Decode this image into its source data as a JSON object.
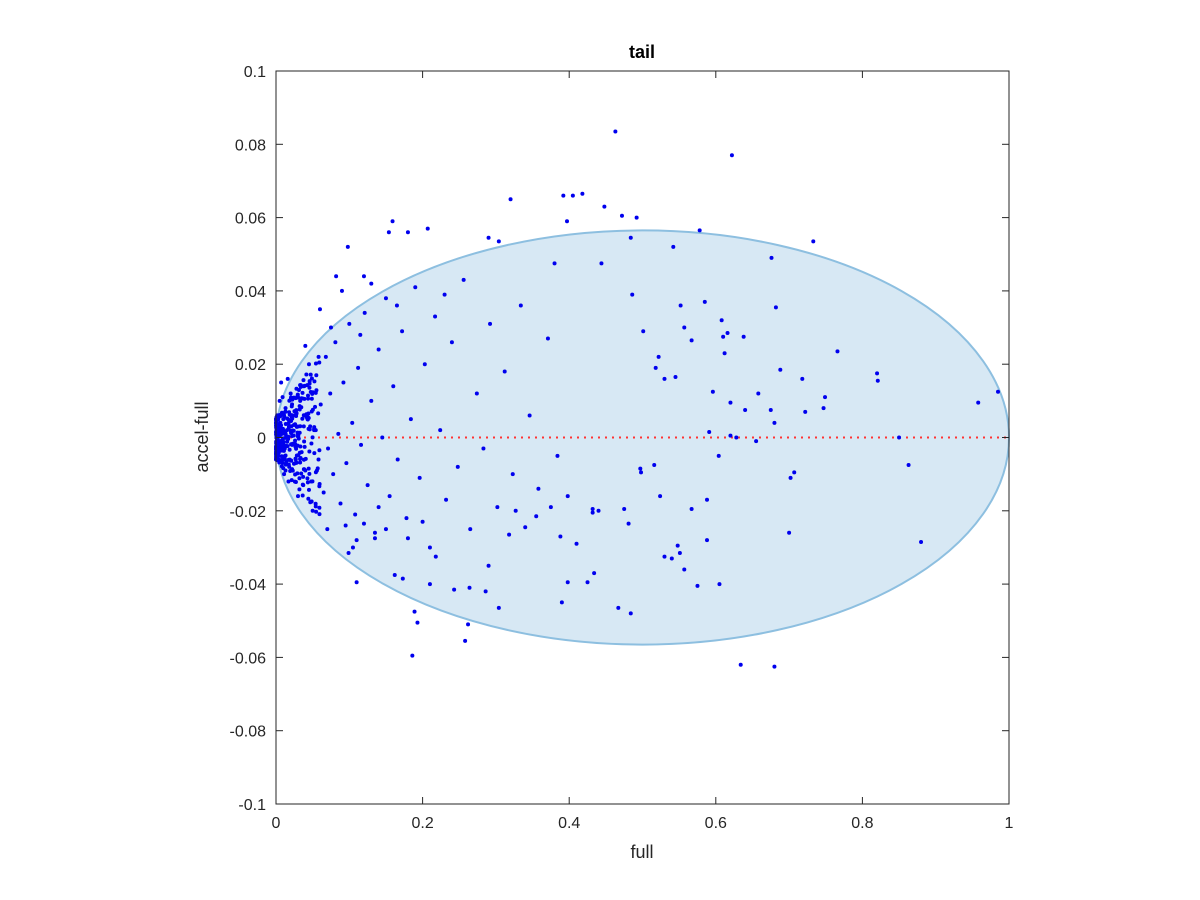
{
  "chart_data": {
    "type": "scatter",
    "title": "tail",
    "xlabel": "full",
    "ylabel": "accel-full",
    "xlim": [
      0,
      1
    ],
    "ylim": [
      -0.1,
      0.1
    ],
    "xticks": [
      0,
      0.2,
      0.4,
      0.6,
      0.8,
      1
    ],
    "xtick_labels": [
      "0",
      "0.2",
      "0.4",
      "0.6",
      "0.8",
      "1"
    ],
    "yticks": [
      -0.1,
      -0.08,
      -0.06,
      -0.04,
      -0.02,
      0,
      0.02,
      0.04,
      0.06,
      0.08,
      0.1
    ],
    "ytick_labels": [
      "-0.1",
      "-0.08",
      "-0.06",
      "-0.04",
      "-0.02",
      "0",
      "0.02",
      "0.04",
      "0.06",
      "0.08",
      "0.1"
    ],
    "grid": false,
    "legend": "none",
    "colors": {
      "points": "#0000ee",
      "region_fill": "#d7e8f4",
      "region_edge": "#8dbfe0",
      "zero_line": "#ff3333"
    },
    "reference_line": {
      "y": 0,
      "style": "dotted"
    },
    "region": {
      "shape": "ellipse",
      "x_min": 0,
      "x_max": 1,
      "center_y": 0,
      "y_extent": 0.0565
    },
    "points": [
      [
        0.463,
        0.0835
      ],
      [
        0.622,
        0.077
      ],
      [
        0.32,
        0.065
      ],
      [
        0.392,
        0.066
      ],
      [
        0.405,
        0.066
      ],
      [
        0.418,
        0.0665
      ],
      [
        0.448,
        0.063
      ],
      [
        0.472,
        0.0605
      ],
      [
        0.492,
        0.06
      ],
      [
        0.397,
        0.059
      ],
      [
        0.159,
        0.059
      ],
      [
        0.578,
        0.0565
      ],
      [
        0.484,
        0.0545
      ],
      [
        0.154,
        0.056
      ],
      [
        0.18,
        0.056
      ],
      [
        0.207,
        0.057
      ],
      [
        0.733,
        0.0535
      ],
      [
        0.676,
        0.049
      ],
      [
        0.098,
        0.052
      ],
      [
        0.542,
        0.052
      ],
      [
        0.304,
        0.0535
      ],
      [
        0.29,
        0.0545
      ],
      [
        0.12,
        0.044
      ],
      [
        0.082,
        0.044
      ],
      [
        0.444,
        0.0475
      ],
      [
        0.38,
        0.0475
      ],
      [
        0.486,
        0.039
      ],
      [
        0.552,
        0.036
      ],
      [
        0.585,
        0.037
      ],
      [
        0.682,
        0.0355
      ],
      [
        0.608,
        0.032
      ],
      [
        0.616,
        0.0285
      ],
      [
        0.61,
        0.0275
      ],
      [
        0.501,
        0.029
      ],
      [
        0.557,
        0.03
      ],
      [
        0.638,
        0.0275
      ],
      [
        0.567,
        0.0265
      ],
      [
        0.612,
        0.023
      ],
      [
        0.766,
        0.0235
      ],
      [
        0.522,
        0.022
      ],
      [
        0.518,
        0.019
      ],
      [
        0.688,
        0.0185
      ],
      [
        0.53,
        0.016
      ],
      [
        0.545,
        0.0165
      ],
      [
        0.718,
        0.016
      ],
      [
        0.82,
        0.0175
      ],
      [
        0.821,
        0.0155
      ],
      [
        0.596,
        0.0125
      ],
      [
        0.658,
        0.012
      ],
      [
        0.749,
        0.011
      ],
      [
        0.985,
        0.0125
      ],
      [
        0.958,
        0.0095
      ],
      [
        0.62,
        0.0095
      ],
      [
        0.64,
        0.0075
      ],
      [
        0.675,
        0.0075
      ],
      [
        0.747,
        0.008
      ],
      [
        0.722,
        0.007
      ],
      [
        0.68,
        0.004
      ],
      [
        0.591,
        0.0015
      ],
      [
        0.628,
        0.0,
        "x"
      ],
      [
        0.62,
        0.0005
      ],
      [
        0.655,
        -0.001
      ],
      [
        0.85,
        0.0
      ],
      [
        0.863,
        -0.0075
      ],
      [
        0.604,
        -0.005
      ],
      [
        0.702,
        -0.011
      ],
      [
        0.707,
        -0.0095
      ],
      [
        0.516,
        -0.0075
      ],
      [
        0.497,
        -0.0085
      ],
      [
        0.498,
        -0.0095
      ],
      [
        0.588,
        -0.017
      ],
      [
        0.524,
        -0.016
      ],
      [
        0.567,
        -0.0195
      ],
      [
        0.475,
        -0.0195
      ],
      [
        0.432,
        -0.0205
      ],
      [
        0.375,
        -0.019
      ],
      [
        0.388,
        -0.027
      ],
      [
        0.398,
        -0.016
      ],
      [
        0.41,
        -0.029
      ],
      [
        0.432,
        -0.0195
      ],
      [
        0.44,
        -0.02
      ],
      [
        0.481,
        -0.0235
      ],
      [
        0.7,
        -0.026
      ],
      [
        0.588,
        -0.028
      ],
      [
        0.88,
        -0.0285
      ],
      [
        0.548,
        -0.0295
      ],
      [
        0.551,
        -0.0315
      ],
      [
        0.54,
        -0.033
      ],
      [
        0.557,
        -0.036
      ],
      [
        0.53,
        -0.0325
      ],
      [
        0.575,
        -0.0405
      ],
      [
        0.605,
        -0.04
      ],
      [
        0.434,
        -0.037
      ],
      [
        0.425,
        -0.0395
      ],
      [
        0.398,
        -0.0395
      ],
      [
        0.39,
        -0.045
      ],
      [
        0.467,
        -0.0465
      ],
      [
        0.484,
        -0.048
      ],
      [
        0.634,
        -0.062
      ],
      [
        0.68,
        -0.0625
      ],
      [
        0.258,
        -0.0555
      ],
      [
        0.262,
        -0.051
      ],
      [
        0.189,
        -0.0475
      ],
      [
        0.193,
        -0.0505
      ],
      [
        0.186,
        -0.0595
      ],
      [
        0.11,
        -0.0395
      ],
      [
        0.162,
        -0.0375
      ],
      [
        0.173,
        -0.0385
      ],
      [
        0.21,
        -0.04
      ],
      [
        0.243,
        -0.0415
      ],
      [
        0.264,
        -0.041
      ],
      [
        0.286,
        -0.042
      ],
      [
        0.304,
        -0.0465
      ],
      [
        0.29,
        -0.035
      ],
      [
        0.318,
        -0.0265
      ],
      [
        0.34,
        -0.0245
      ],
      [
        0.355,
        -0.0215
      ],
      [
        0.327,
        -0.02
      ],
      [
        0.12,
        -0.0235
      ],
      [
        0.105,
        -0.03
      ],
      [
        0.099,
        -0.0315
      ],
      [
        0.135,
        -0.0275
      ],
      [
        0.15,
        -0.025
      ],
      [
        0.18,
        -0.0275
      ],
      [
        0.218,
        -0.0325
      ],
      [
        0.005,
        0.01
      ],
      [
        0.01,
        0.005
      ],
      [
        0.012,
        -0.003
      ],
      [
        0.007,
        0.015
      ],
      [
        0.015,
        0.002
      ],
      [
        0.018,
        -0.008
      ],
      [
        0.02,
        0.012
      ],
      [
        0.004,
        -0.006
      ],
      [
        0.008,
        0.001
      ],
      [
        0.013,
        0.008
      ],
      [
        0.022,
        -0.002
      ],
      [
        0.025,
        0.006
      ],
      [
        0.017,
        -0.012
      ],
      [
        0.03,
        0.003
      ],
      [
        0.009,
        0.011
      ],
      [
        0.027,
        -0.006
      ],
      [
        0.033,
        0.01
      ],
      [
        0.011,
        -0.01
      ],
      [
        0.035,
        -0.004
      ],
      [
        0.038,
        0.014
      ],
      [
        0.04,
        -0.009
      ],
      [
        0.043,
        0.005
      ],
      [
        0.006,
        0.004
      ],
      [
        0.016,
        0.016
      ],
      [
        0.045,
        0.02
      ],
      [
        0.048,
        -0.012
      ],
      [
        0.052,
        0.002
      ],
      [
        0.055,
        0.017
      ],
      [
        0.058,
        -0.006
      ],
      [
        0.061,
        0.009
      ],
      [
        0.065,
        -0.015
      ],
      [
        0.068,
        0.022
      ],
      [
        0.071,
        -0.003
      ],
      [
        0.074,
        0.012
      ],
      [
        0.078,
        -0.01
      ],
      [
        0.081,
        0.026
      ],
      [
        0.085,
        0.001
      ],
      [
        0.088,
        -0.018
      ],
      [
        0.092,
        0.015
      ],
      [
        0.096,
        -0.007
      ],
      [
        0.1,
        0.031
      ],
      [
        0.104,
        0.004
      ],
      [
        0.108,
        -0.021
      ],
      [
        0.112,
        0.019
      ],
      [
        0.116,
        -0.002
      ],
      [
        0.121,
        0.034
      ],
      [
        0.125,
        -0.013
      ],
      [
        0.13,
        0.01
      ],
      [
        0.135,
        -0.026
      ],
      [
        0.14,
        0.024
      ],
      [
        0.145,
        0.0
      ],
      [
        0.15,
        0.038
      ],
      [
        0.155,
        -0.016
      ],
      [
        0.16,
        0.014
      ],
      [
        0.166,
        -0.006
      ],
      [
        0.172,
        0.029
      ],
      [
        0.178,
        -0.022
      ],
      [
        0.184,
        0.005
      ],
      [
        0.19,
        0.041
      ],
      [
        0.196,
        -0.011
      ],
      [
        0.203,
        0.02
      ],
      [
        0.21,
        -0.03
      ],
      [
        0.217,
        0.033
      ],
      [
        0.224,
        0.002
      ],
      [
        0.232,
        -0.017
      ],
      [
        0.24,
        0.026
      ],
      [
        0.248,
        -0.008
      ],
      [
        0.256,
        0.043
      ],
      [
        0.265,
        -0.025
      ],
      [
        0.274,
        0.012
      ],
      [
        0.283,
        -0.003
      ],
      [
        0.292,
        0.031
      ],
      [
        0.302,
        -0.019
      ],
      [
        0.312,
        0.018
      ],
      [
        0.323,
        -0.01
      ],
      [
        0.334,
        0.036
      ],
      [
        0.346,
        0.006
      ],
      [
        0.358,
        -0.014
      ],
      [
        0.371,
        0.027
      ],
      [
        0.384,
        -0.005
      ],
      [
        0.06,
        0.035
      ],
      [
        0.07,
        -0.025
      ],
      [
        0.09,
        0.04
      ],
      [
        0.11,
        -0.028
      ],
      [
        0.13,
        0.042
      ],
      [
        0.05,
        -0.02
      ],
      [
        0.04,
        0.025
      ],
      [
        0.03,
        -0.016
      ],
      [
        0.075,
        0.03
      ],
      [
        0.095,
        -0.024
      ],
      [
        0.115,
        0.028
      ],
      [
        0.14,
        -0.019
      ],
      [
        0.165,
        0.036
      ],
      [
        0.2,
        -0.023
      ],
      [
        0.23,
        0.039
      ]
    ]
  }
}
